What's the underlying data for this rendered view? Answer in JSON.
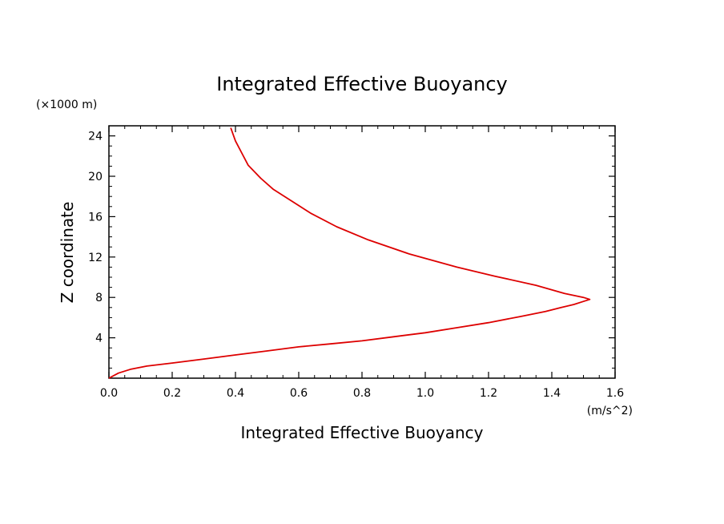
{
  "chart_data": {
    "type": "line",
    "title": "Integrated Effective Buoyancy",
    "xlabel": "Integrated Effective Buoyancy",
    "ylabel": "Z coordinate",
    "x_unit": "(m/s^2)",
    "y_unit": "(×1000 m)",
    "xlim": [
      0.0,
      1.6
    ],
    "ylim": [
      0,
      25
    ],
    "x_ticks": [
      "0.0",
      "0.2",
      "0.4",
      "0.6",
      "0.8",
      "1.0",
      "1.2",
      "1.4",
      "1.6"
    ],
    "y_ticks": [
      "4",
      "8",
      "12",
      "16",
      "20",
      "24"
    ],
    "grid": false,
    "series": [
      {
        "color": "#dd0000",
        "x": [
          0.0,
          0.03,
          0.07,
          0.12,
          0.2,
          0.3,
          0.4,
          0.5,
          0.6,
          0.7,
          0.8,
          0.9,
          1.0,
          1.1,
          1.2,
          1.3,
          1.38,
          1.43,
          1.47,
          1.5,
          1.52,
          1.5,
          1.44,
          1.35,
          1.22,
          1.1,
          0.95,
          0.82,
          0.72,
          0.64,
          0.58,
          0.52,
          0.48,
          0.44,
          0.42,
          0.4,
          0.385
        ],
        "y": [
          0.0,
          0.5,
          0.9,
          1.2,
          1.5,
          1.9,
          2.3,
          2.7,
          3.1,
          3.4,
          3.7,
          4.1,
          4.5,
          5.0,
          5.5,
          6.1,
          6.6,
          7.0,
          7.3,
          7.6,
          7.8,
          8.0,
          8.4,
          9.2,
          10.1,
          11.0,
          12.3,
          13.7,
          15.0,
          16.3,
          17.5,
          18.7,
          19.8,
          21.1,
          22.3,
          23.5,
          24.8
        ]
      }
    ]
  }
}
